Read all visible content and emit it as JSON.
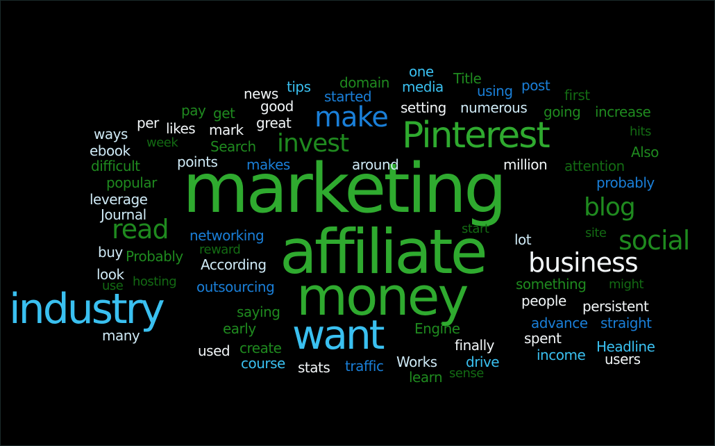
{
  "words": [
    {
      "text": "marketing",
      "c": "gl"
    },
    {
      "text": "affiliate",
      "c": "gl"
    },
    {
      "text": "money",
      "c": "gl"
    },
    {
      "text": "industry",
      "c": "bl"
    },
    {
      "text": "want",
      "c": "bl"
    },
    {
      "text": "Pinterest",
      "c": "gl"
    },
    {
      "text": "business",
      "c": "wh"
    },
    {
      "text": "social",
      "c": "g"
    },
    {
      "text": "blog",
      "c": "g"
    },
    {
      "text": "make",
      "c": "b"
    },
    {
      "text": "invest",
      "c": "g"
    },
    {
      "text": "read",
      "c": "g"
    },
    {
      "text": "news",
      "c": "wh"
    },
    {
      "text": "tips",
      "c": "bl"
    },
    {
      "text": "domain",
      "c": "g"
    },
    {
      "text": "one",
      "c": "bl"
    },
    {
      "text": "media",
      "c": "bl"
    },
    {
      "text": "Title",
      "c": "g"
    },
    {
      "text": "post",
      "c": "b"
    },
    {
      "text": "using",
      "c": "b"
    },
    {
      "text": "first",
      "c": "gd"
    },
    {
      "text": "started",
      "c": "b"
    },
    {
      "text": "good",
      "c": "wh"
    },
    {
      "text": "pay",
      "c": "g"
    },
    {
      "text": "get",
      "c": "g"
    },
    {
      "text": "setting",
      "c": "wh"
    },
    {
      "text": "numerous",
      "c": "wb"
    },
    {
      "text": "going",
      "c": "g"
    },
    {
      "text": "increase",
      "c": "g"
    },
    {
      "text": "per",
      "c": "wh"
    },
    {
      "text": "likes",
      "c": "wh"
    },
    {
      "text": "great",
      "c": "wh"
    },
    {
      "text": "mark",
      "c": "wh"
    },
    {
      "text": "hits",
      "c": "gd"
    },
    {
      "text": "ways",
      "c": "wb"
    },
    {
      "text": "week",
      "c": "gd"
    },
    {
      "text": "Search",
      "c": "g"
    },
    {
      "text": "Also",
      "c": "g"
    },
    {
      "text": "ebook",
      "c": "wb"
    },
    {
      "text": "difficult",
      "c": "g"
    },
    {
      "text": "points",
      "c": "wb"
    },
    {
      "text": "makes",
      "c": "b"
    },
    {
      "text": "around",
      "c": "wb"
    },
    {
      "text": "million",
      "c": "wh"
    },
    {
      "text": "attention",
      "c": "gd"
    },
    {
      "text": "popular",
      "c": "g"
    },
    {
      "text": "probably",
      "c": "b"
    },
    {
      "text": "leverage",
      "c": "wb"
    },
    {
      "text": "Journal",
      "c": "wb"
    },
    {
      "text": "networking",
      "c": "b"
    },
    {
      "text": "start",
      "c": "gd"
    },
    {
      "text": "site",
      "c": "gd"
    },
    {
      "text": "lot",
      "c": "wb"
    },
    {
      "text": "buy",
      "c": "wb"
    },
    {
      "text": "reward",
      "c": "gd"
    },
    {
      "text": "Probably",
      "c": "g"
    },
    {
      "text": "According",
      "c": "wb"
    },
    {
      "text": "look",
      "c": "wb"
    },
    {
      "text": "use",
      "c": "gd"
    },
    {
      "text": "hosting",
      "c": "gd"
    },
    {
      "text": "outsourcing",
      "c": "b"
    },
    {
      "text": "something",
      "c": "g"
    },
    {
      "text": "might",
      "c": "gd"
    },
    {
      "text": "people",
      "c": "wh"
    },
    {
      "text": "persistent",
      "c": "wh"
    },
    {
      "text": "saying",
      "c": "g"
    },
    {
      "text": "advance",
      "c": "b"
    },
    {
      "text": "straight",
      "c": "b"
    },
    {
      "text": "early",
      "c": "g"
    },
    {
      "text": "Engine",
      "c": "g"
    },
    {
      "text": "spent",
      "c": "wh"
    },
    {
      "text": "many",
      "c": "wb"
    },
    {
      "text": "finally",
      "c": "wh"
    },
    {
      "text": "Headline",
      "c": "bl"
    },
    {
      "text": "used",
      "c": "wh"
    },
    {
      "text": "create",
      "c": "g"
    },
    {
      "text": "income",
      "c": "bl"
    },
    {
      "text": "users",
      "c": "wh"
    },
    {
      "text": "course",
      "c": "bl"
    },
    {
      "text": "stats",
      "c": "wh"
    },
    {
      "text": "traffic",
      "c": "b"
    },
    {
      "text": "Works",
      "c": "wb"
    },
    {
      "text": "drive",
      "c": "bl"
    },
    {
      "text": "learn",
      "c": "g"
    },
    {
      "text": "sense",
      "c": "gd"
    }
  ]
}
